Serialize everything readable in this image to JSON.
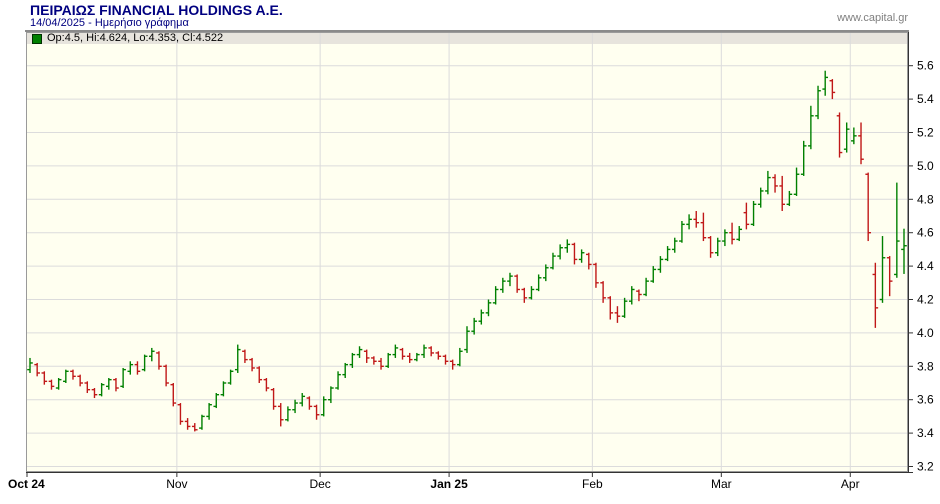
{
  "header": {
    "title": "ΠΕΙΡΑΙΩΣ FINANCIAL HOLDINGS A.E.",
    "subtitle": "14/04/2025 - Ημερήσιο γράφημα",
    "website": "www.capital.gr"
  },
  "legend": {
    "marker_color": "#008000",
    "text": "Op:4.5, Hi:4.624, Lo:4.353, Cl:4.522"
  },
  "chart_data": {
    "type": "ohlc-candlestick",
    "title": "ΠΕΙΡΑΙΩΣ FINANCIAL HOLDINGS A.E. daily price chart",
    "date_of_last_bar": "14/04/2025",
    "last_bar": {
      "open": 4.5,
      "high": 4.624,
      "low": 4.353,
      "close": 4.522
    },
    "y_axis": {
      "side": "right",
      "min": 3.2,
      "max": 5.72,
      "tick_step": 0.2,
      "ticks": [
        3.2,
        3.4,
        3.6,
        3.8,
        4.0,
        4.2,
        4.4,
        4.6,
        4.8,
        5.0,
        5.2,
        5.4,
        5.6
      ]
    },
    "x_ticks": [
      {
        "label": "Oct 24",
        "index": 0,
        "bold": true
      },
      {
        "label": "Nov",
        "index": 21,
        "bold": false
      },
      {
        "label": "Dec",
        "index": 41,
        "bold": false
      },
      {
        "label": "Jan 25",
        "index": 59,
        "bold": true
      },
      {
        "label": "Feb",
        "index": 79,
        "bold": false
      },
      {
        "label": "Mar",
        "index": 97,
        "bold": false
      },
      {
        "label": "Apr",
        "index": 115,
        "bold": false
      }
    ],
    "colors": {
      "up": "#008000",
      "down": "#c01818",
      "grid": "#dcdcdc",
      "plot_bg": "#fffff0",
      "legend_bg": "#e7e4dd",
      "border": "#8a8a8a"
    },
    "grid": true,
    "bars_ohlc": [
      [
        3.78,
        3.85,
        3.76,
        3.82
      ],
      [
        3.81,
        3.82,
        3.74,
        3.76
      ],
      [
        3.76,
        3.77,
        3.69,
        3.71
      ],
      [
        3.71,
        3.72,
        3.66,
        3.68
      ],
      [
        3.67,
        3.73,
        3.66,
        3.72
      ],
      [
        3.71,
        3.78,
        3.7,
        3.77
      ],
      [
        3.77,
        3.78,
        3.72,
        3.74
      ],
      [
        3.74,
        3.75,
        3.68,
        3.7
      ],
      [
        3.7,
        3.71,
        3.64,
        3.66
      ],
      [
        3.66,
        3.67,
        3.61,
        3.63
      ],
      [
        3.63,
        3.7,
        3.62,
        3.69
      ],
      [
        3.68,
        3.73,
        3.66,
        3.72
      ],
      [
        3.72,
        3.73,
        3.65,
        3.67
      ],
      [
        3.68,
        3.79,
        3.67,
        3.78
      ],
      [
        3.77,
        3.83,
        3.75,
        3.81
      ],
      [
        3.81,
        3.83,
        3.75,
        3.77
      ],
      [
        3.78,
        3.87,
        3.77,
        3.86
      ],
      [
        3.86,
        3.91,
        3.83,
        3.89
      ],
      [
        3.88,
        3.89,
        3.78,
        3.8
      ],
      [
        3.8,
        3.81,
        3.68,
        3.7
      ],
      [
        3.69,
        3.7,
        3.56,
        3.58
      ],
      [
        3.57,
        3.58,
        3.45,
        3.47
      ],
      [
        3.47,
        3.49,
        3.42,
        3.44
      ],
      [
        3.44,
        3.46,
        3.41,
        3.42
      ],
      [
        3.43,
        3.51,
        3.42,
        3.5
      ],
      [
        3.5,
        3.58,
        3.48,
        3.57
      ],
      [
        3.56,
        3.64,
        3.55,
        3.63
      ],
      [
        3.63,
        3.71,
        3.62,
        3.7
      ],
      [
        3.7,
        3.78,
        3.69,
        3.77
      ],
      [
        3.78,
        3.93,
        3.76,
        3.9
      ],
      [
        3.89,
        3.9,
        3.82,
        3.84
      ],
      [
        3.84,
        3.85,
        3.77,
        3.79
      ],
      [
        3.79,
        3.8,
        3.7,
        3.72
      ],
      [
        3.72,
        3.73,
        3.65,
        3.67
      ],
      [
        3.66,
        3.67,
        3.54,
        3.56
      ],
      [
        3.56,
        3.58,
        3.44,
        3.48
      ],
      [
        3.48,
        3.56,
        3.47,
        3.54
      ],
      [
        3.54,
        3.6,
        3.52,
        3.58
      ],
      [
        3.58,
        3.64,
        3.56,
        3.62
      ],
      [
        3.61,
        3.62,
        3.54,
        3.56
      ],
      [
        3.56,
        3.57,
        3.48,
        3.51
      ],
      [
        3.51,
        3.62,
        3.5,
        3.6
      ],
      [
        3.6,
        3.68,
        3.58,
        3.67
      ],
      [
        3.67,
        3.77,
        3.66,
        3.75
      ],
      [
        3.75,
        3.82,
        3.73,
        3.81
      ],
      [
        3.81,
        3.88,
        3.79,
        3.87
      ],
      [
        3.87,
        3.92,
        3.85,
        3.9
      ],
      [
        3.89,
        3.9,
        3.82,
        3.85
      ],
      [
        3.85,
        3.86,
        3.81,
        3.83
      ],
      [
        3.83,
        3.85,
        3.78,
        3.8
      ],
      [
        3.8,
        3.88,
        3.79,
        3.87
      ],
      [
        3.87,
        3.93,
        3.85,
        3.91
      ],
      [
        3.9,
        3.91,
        3.84,
        3.86
      ],
      [
        3.86,
        3.88,
        3.82,
        3.84
      ],
      [
        3.84,
        3.88,
        3.83,
        3.87
      ],
      [
        3.87,
        3.93,
        3.85,
        3.91
      ],
      [
        3.91,
        3.92,
        3.86,
        3.88
      ],
      [
        3.88,
        3.89,
        3.84,
        3.86
      ],
      [
        3.86,
        3.87,
        3.81,
        3.83
      ],
      [
        3.83,
        3.84,
        3.78,
        3.81
      ],
      [
        3.81,
        3.91,
        3.8,
        3.89
      ],
      [
        3.9,
        4.04,
        3.88,
        4.01
      ],
      [
        4.01,
        4.09,
        3.99,
        4.07
      ],
      [
        4.07,
        4.14,
        4.05,
        4.12
      ],
      [
        4.12,
        4.2,
        4.1,
        4.18
      ],
      [
        4.18,
        4.28,
        4.17,
        4.26
      ],
      [
        4.26,
        4.33,
        4.24,
        4.31
      ],
      [
        4.31,
        4.36,
        4.28,
        4.34
      ],
      [
        4.34,
        4.35,
        4.24,
        4.26
      ],
      [
        4.26,
        4.27,
        4.18,
        4.21
      ],
      [
        4.21,
        4.28,
        4.2,
        4.26
      ],
      [
        4.26,
        4.35,
        4.25,
        4.33
      ],
      [
        4.33,
        4.41,
        4.31,
        4.39
      ],
      [
        4.39,
        4.48,
        4.38,
        4.46
      ],
      [
        4.46,
        4.53,
        4.44,
        4.51
      ],
      [
        4.51,
        4.56,
        4.48,
        4.53
      ],
      [
        4.53,
        4.54,
        4.41,
        4.44
      ],
      [
        4.44,
        4.5,
        4.42,
        4.48
      ],
      [
        4.47,
        4.48,
        4.38,
        4.41
      ],
      [
        4.41,
        4.42,
        4.27,
        4.3
      ],
      [
        4.3,
        4.31,
        4.18,
        4.21
      ],
      [
        4.21,
        4.22,
        4.08,
        4.12
      ],
      [
        4.12,
        4.16,
        4.06,
        4.1
      ],
      [
        4.1,
        4.21,
        4.09,
        4.19
      ],
      [
        4.19,
        4.28,
        4.17,
        4.26
      ],
      [
        4.25,
        4.26,
        4.19,
        4.23
      ],
      [
        4.23,
        4.33,
        4.22,
        4.31
      ],
      [
        4.31,
        4.4,
        4.3,
        4.38
      ],
      [
        4.38,
        4.46,
        4.36,
        4.44
      ],
      [
        4.44,
        4.52,
        4.43,
        4.5
      ],
      [
        4.5,
        4.57,
        4.48,
        4.55
      ],
      [
        4.55,
        4.67,
        4.54,
        4.65
      ],
      [
        4.65,
        4.71,
        4.62,
        4.68
      ],
      [
        4.68,
        4.73,
        4.63,
        4.66
      ],
      [
        4.66,
        4.72,
        4.55,
        4.57
      ],
      [
        4.57,
        4.58,
        4.45,
        4.48
      ],
      [
        4.48,
        4.57,
        4.46,
        4.55
      ],
      [
        4.55,
        4.62,
        4.52,
        4.6
      ],
      [
        4.6,
        4.66,
        4.53,
        4.56
      ],
      [
        4.56,
        4.64,
        4.55,
        4.62
      ],
      [
        4.72,
        4.78,
        4.62,
        4.65
      ],
      [
        4.65,
        4.79,
        4.64,
        4.77
      ],
      [
        4.77,
        4.87,
        4.75,
        4.85
      ],
      [
        4.85,
        4.97,
        4.83,
        4.93
      ],
      [
        4.93,
        4.95,
        4.84,
        4.88
      ],
      [
        4.88,
        4.94,
        4.73,
        4.77
      ],
      [
        4.77,
        4.85,
        4.76,
        4.83
      ],
      [
        4.83,
        4.99,
        4.82,
        4.95
      ],
      [
        4.95,
        5.15,
        4.94,
        5.12
      ],
      [
        5.12,
        5.36,
        5.1,
        5.3
      ],
      [
        5.3,
        5.48,
        5.28,
        5.45
      ],
      [
        5.46,
        5.57,
        5.42,
        5.53
      ],
      [
        5.51,
        5.52,
        5.4,
        5.44
      ],
      [
        5.3,
        5.32,
        5.05,
        5.08
      ],
      [
        5.1,
        5.26,
        5.08,
        5.22
      ],
      [
        5.15,
        5.23,
        5.13,
        5.18
      ],
      [
        5.18,
        5.26,
        5.01,
        5.04
      ],
      [
        4.95,
        4.96,
        4.55,
        4.6
      ],
      [
        4.35,
        4.42,
        4.03,
        4.15
      ],
      [
        4.2,
        4.58,
        4.18,
        4.45
      ],
      [
        4.45,
        4.46,
        4.22,
        4.31
      ],
      [
        4.35,
        4.9,
        4.33,
        4.55
      ],
      [
        4.5,
        4.624,
        4.353,
        4.522
      ]
    ]
  }
}
